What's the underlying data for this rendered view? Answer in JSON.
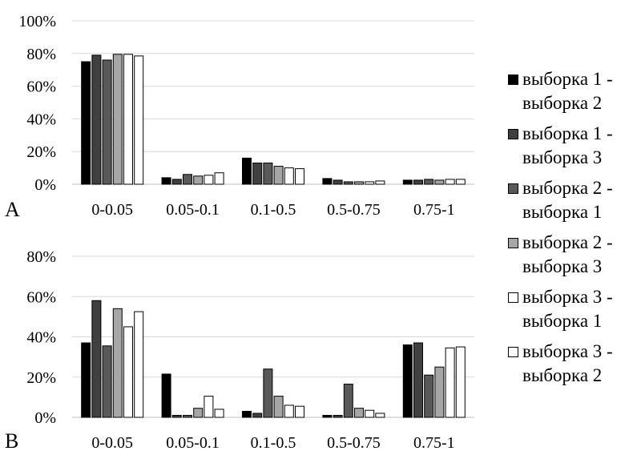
{
  "legend": {
    "placement": "right",
    "items": [
      {
        "label": "выборка 1 -\nвыборка 2",
        "color": "#000000"
      },
      {
        "label": "выборка 1 -\nвыборка 3",
        "color": "#404040"
      },
      {
        "label": "выборка 2 -\nвыборка 1",
        "color": "#595959"
      },
      {
        "label": "выборка 2 -\nвыборка 3",
        "color": "#a6a6a6"
      },
      {
        "label": "выборка 3 -\nвыборка 1",
        "color": "#ffffff"
      },
      {
        "label": "выборка 3 -\nвыборка 2",
        "color": "#ffffff"
      }
    ]
  },
  "chart_data": [
    {
      "type": "bar",
      "panel_label": "A",
      "categories": [
        "0-0.05",
        "0.05-0.1",
        "0.1-0.5",
        "0.5-0.75",
        "0.75-1"
      ],
      "ylim": [
        0,
        100
      ],
      "yticks": [
        "0%",
        "20%",
        "40%",
        "60%",
        "80%",
        "100%"
      ],
      "grid": true,
      "series": [
        {
          "name": "выборка 1 - выборка 2",
          "color": "#000000",
          "values": [
            75,
            4,
            16,
            3.5,
            2.5
          ]
        },
        {
          "name": "выборка 1 - выборка 3",
          "color": "#404040",
          "values": [
            79,
            3,
            13,
            2.5,
            2.5
          ]
        },
        {
          "name": "выборка 2 - выборка 1",
          "color": "#595959",
          "values": [
            76,
            6,
            13,
            1.5,
            3
          ]
        },
        {
          "name": "выборка 2 - выборка 3",
          "color": "#a6a6a6",
          "values": [
            79.5,
            5,
            11,
            1.5,
            2.5
          ]
        },
        {
          "name": "выборка 3 - выборка 1",
          "color": "#ffffff",
          "values": [
            79.5,
            5.5,
            10,
            1.5,
            3
          ]
        },
        {
          "name": "выборка 3 - выборка 2",
          "color": "#ffffff",
          "values": [
            78.5,
            7,
            9.5,
            2,
            3
          ]
        }
      ]
    },
    {
      "type": "bar",
      "panel_label": "B",
      "categories": [
        "0-0.05",
        "0.05-0.1",
        "0.1-0.5",
        "0.5-0.75",
        "0.75-1"
      ],
      "ylim": [
        0,
        80
      ],
      "yticks": [
        "0%",
        "20%",
        "40%",
        "60%",
        "80%"
      ],
      "grid": true,
      "series": [
        {
          "name": "выборка 1 - выборка 2",
          "color": "#000000",
          "values": [
            37,
            21.5,
            3,
            1,
            36
          ]
        },
        {
          "name": "выборка 1 - выборка 3",
          "color": "#404040",
          "values": [
            58,
            1,
            2,
            1,
            37
          ]
        },
        {
          "name": "выборка 2 - выборка 1",
          "color": "#595959",
          "values": [
            35.5,
            1,
            24,
            16.5,
            21
          ]
        },
        {
          "name": "выборка 2 - выборка 3",
          "color": "#a6a6a6",
          "values": [
            54,
            4.5,
            10.5,
            4.5,
            25
          ]
        },
        {
          "name": "выборка 3 - выборка 1",
          "color": "#ffffff",
          "values": [
            45,
            10.5,
            6,
            3.5,
            34.5
          ]
        },
        {
          "name": "выборка 3 - выборка 2",
          "color": "#ffffff",
          "values": [
            52.5,
            4,
            5.5,
            2,
            35
          ]
        }
      ]
    }
  ]
}
